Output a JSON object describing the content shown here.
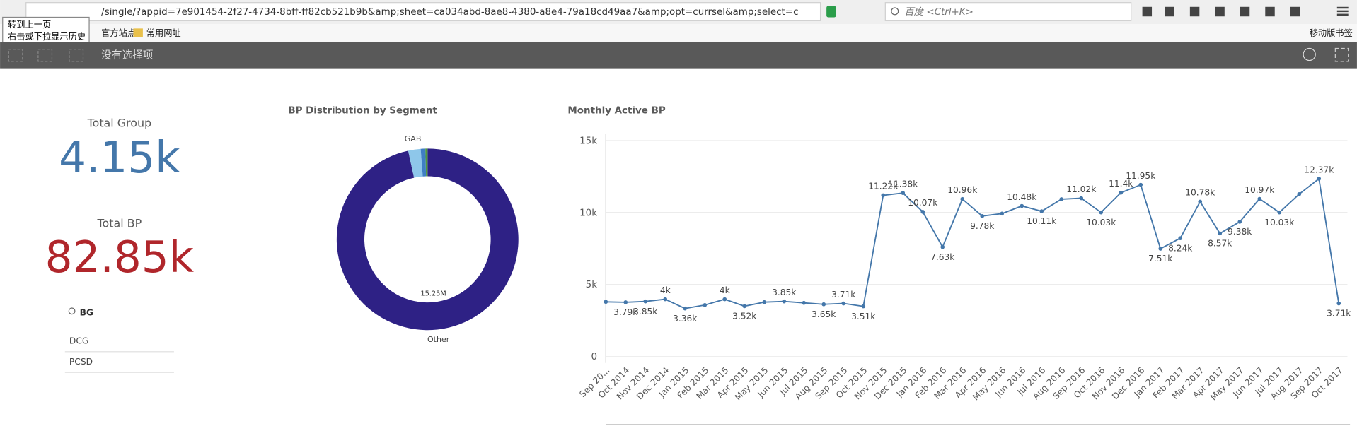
{
  "browser": {
    "url": "/single/?appid=7e901454-2f27-4734-8bff-ff82cb521b9b&amp;sheet=ca034abd-8ae8-4380-a8e4-79a18cd49aa7&amp;opt=currsel&amp;select=c",
    "search_placeholder": "百度 <Ctrl+K>",
    "tooltip": [
      "转到上一页",
      "右击或下拉显示历史"
    ],
    "bookmarks": [
      "官方站点",
      "常用网址"
    ],
    "mobile_bookmarks": "移动版书签"
  },
  "toolbar": {
    "selections": "没有选择项"
  },
  "kpis": [
    {
      "label": "Total Group",
      "value": "4.15k",
      "color": "#4477aa"
    },
    {
      "label": "Total BP",
      "value": "82.85k",
      "color": "#b0262b"
    }
  ],
  "filter": {
    "search": "BG",
    "items": [
      "DCG",
      "PCSD"
    ]
  },
  "chart_data": [
    {
      "type": "pie",
      "title": "BP Distribution by Segment",
      "donut": true,
      "categories": [
        "Other",
        "GAB",
        null,
        null
      ],
      "values": [
        15250000,
        350000,
        130000,
        60000
      ],
      "value_labels": [
        "15.25M",
        null,
        null,
        null
      ],
      "colors": [
        "#2e2185",
        "#8ec7ea",
        "#3f7fc4",
        "#4e9a3f"
      ]
    },
    {
      "type": "line",
      "title": "Monthly Active BP",
      "color": "#4477aa",
      "grid": true,
      "x": [
        "Sep 20...",
        "Oct 2014",
        "Nov 2014",
        "Dec 2014",
        "Jan 2015",
        "Feb 2015",
        "Mar 2015",
        "Apr 2015",
        "May 2015",
        "Jun 2015",
        "Jul 2015",
        "Aug 2015",
        "Sep 2015",
        "Oct 2015",
        "Nov 2015",
        "Dec 2015",
        "Jan 2016",
        "Feb 2016",
        "Mar 2016",
        "Apr 2016",
        "May 2016",
        "Jun 2016",
        "Jul 2016",
        "Aug 2016",
        "Sep 2016",
        "Oct 2016",
        "Nov 2016",
        "Dec 2016",
        "Jan 2017",
        "Feb 2017",
        "Mar 2017",
        "Apr 2017",
        "May 2017",
        "Jun 2017",
        "Jul 2017",
        "Aug 2017",
        "Sep 2017",
        "Oct 2017"
      ],
      "values": [
        3820,
        3790,
        3850,
        4000,
        3360,
        3600,
        4000,
        3520,
        3800,
        3850,
        3750,
        3650,
        3710,
        3510,
        11220,
        11380,
        10070,
        7630,
        10960,
        9780,
        9950,
        10480,
        10110,
        10950,
        11020,
        10030,
        11400,
        11950,
        7510,
        8240,
        10780,
        8570,
        9380,
        10970,
        10030,
        11300,
        12370,
        3710
      ],
      "value_labels": [
        null,
        "3.79k",
        "3.85k",
        "4k",
        "3.36k",
        null,
        "4k",
        "3.52k",
        null,
        "3.85k",
        null,
        "3.65k",
        "3.71k",
        "3.51k",
        "11.22k",
        "11.38k",
        "10.07k",
        "7.63k",
        "10.96k",
        "9.78k",
        null,
        "10.48k",
        "10.11k",
        null,
        "11.02k",
        "10.03k",
        "11.4k",
        "11.95k",
        "7.51k",
        "8.24k",
        "10.78k",
        "8.57k",
        "9.38k",
        "10.97k",
        "10.03k",
        null,
        "12.37k",
        "3.71k"
      ],
      "ylim": [
        0,
        15000
      ],
      "yticks": [
        0,
        {
          "value": 5000,
          "label": "5k"
        },
        {
          "value": 10000,
          "label": "10k"
        },
        {
          "value": 15000,
          "label": "15k"
        }
      ]
    }
  ]
}
